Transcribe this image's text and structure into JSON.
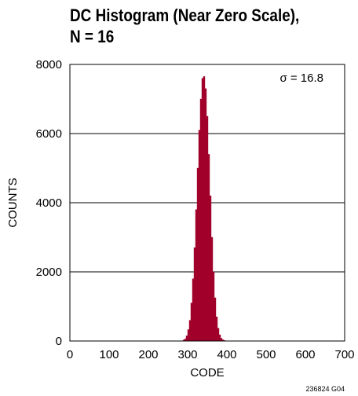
{
  "chart_data": {
    "type": "bar",
    "title_line1": "DC Histogram (Near Zero Scale),",
    "title_line2": "N = 16",
    "xlabel": "CODE",
    "ylabel": "COUNTS",
    "xlim": [
      0,
      700
    ],
    "ylim": [
      0,
      8000
    ],
    "xticks": [
      0,
      100,
      200,
      300,
      400,
      500,
      600,
      700
    ],
    "yticks": [
      0,
      2000,
      4000,
      6000,
      8000
    ],
    "grid": "horizontal",
    "bar_color": "#a0002a",
    "annotation": "σ = 16.8",
    "figure_id": "236824 G04",
    "bin_width": 4,
    "x": [
      290,
      294,
      298,
      302,
      306,
      310,
      314,
      318,
      322,
      326,
      330,
      334,
      338,
      342,
      346,
      350,
      354,
      358,
      362,
      366,
      370,
      374,
      378,
      382,
      386,
      390,
      394,
      398
    ],
    "values": [
      30,
      60,
      150,
      330,
      600,
      1100,
      1800,
      2700,
      3800,
      5000,
      6100,
      7000,
      7600,
      7650,
      7300,
      6500,
      5400,
      4200,
      3000,
      2000,
      1250,
      700,
      370,
      180,
      80,
      35,
      15,
      5
    ]
  }
}
